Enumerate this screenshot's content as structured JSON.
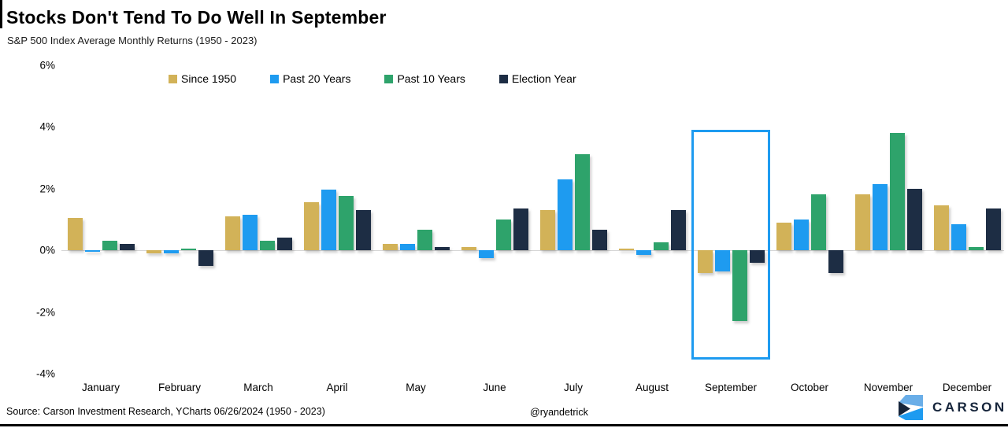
{
  "header": {
    "title": "Stocks Don't Tend To Do Well In September",
    "subtitle": "S&P 500 Index Average Monthly Returns (1950 - 2023)"
  },
  "chart_data": {
    "type": "bar",
    "title": "Stocks Don't Tend To Do Well In September",
    "subtitle": "S&P 500 Index Average Monthly Returns (1950 - 2023)",
    "categories": [
      "January",
      "February",
      "March",
      "April",
      "May",
      "June",
      "July",
      "August",
      "September",
      "October",
      "November",
      "December"
    ],
    "series": [
      {
        "name": "Since 1950",
        "color": "#D2B258",
        "values": [
          1.05,
          -0.1,
          1.1,
          1.55,
          0.2,
          0.1,
          1.3,
          0.05,
          -0.75,
          0.9,
          1.8,
          1.45
        ]
      },
      {
        "name": "Past 20 Years",
        "color": "#1E9BF0",
        "values": [
          -0.05,
          -0.1,
          1.15,
          1.95,
          0.2,
          -0.25,
          2.3,
          -0.15,
          -0.7,
          1.0,
          2.15,
          0.85
        ]
      },
      {
        "name": "Past 10 Years",
        "color": "#2EA36B",
        "values": [
          0.3,
          0.05,
          0.3,
          1.75,
          0.65,
          1.0,
          3.1,
          0.25,
          -2.3,
          1.8,
          3.8,
          0.1
        ]
      },
      {
        "name": "Election Year",
        "color": "#1D2D44",
        "values": [
          0.2,
          -0.5,
          0.4,
          1.3,
          0.1,
          1.35,
          0.65,
          1.3,
          -0.4,
          -0.75,
          2.0,
          1.35
        ]
      }
    ],
    "y_ticks": {
      "labels": [
        "6%",
        "4%",
        "2%",
        "0%",
        "-2%",
        "-4%"
      ],
      "values": [
        6,
        4,
        2,
        0,
        -2,
        -4
      ]
    },
    "ylim": [
      -4,
      6
    ],
    "xlabel": "",
    "ylabel": "",
    "grid": false,
    "legend_position": "top-center",
    "highlight": {
      "month": "September",
      "from_pct": 3.9,
      "to_pct": -3.55,
      "color": "#1E9BF0"
    }
  },
  "footer": {
    "source": "Source: Carson Investment Research, YCharts 06/26/2024 (1950 - 2023)",
    "handle": "@ryandetrick",
    "brand": "CARSON"
  }
}
